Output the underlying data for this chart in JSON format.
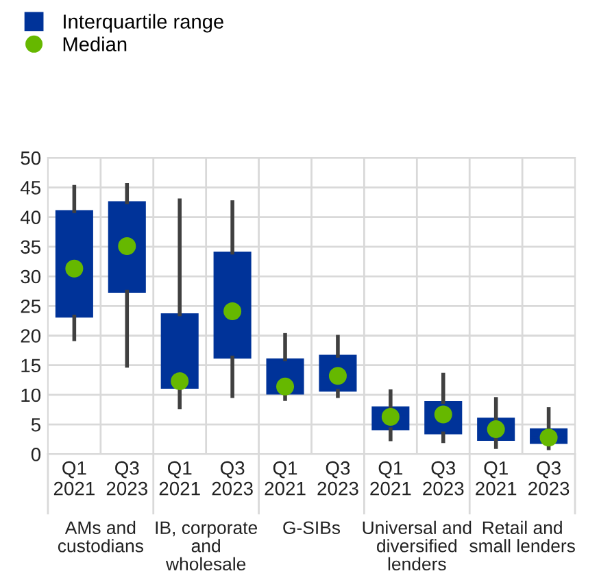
{
  "chart_data": {
    "type": "box",
    "categories": [
      "Q1\n2021",
      "Q3\n2023",
      "Q1\n2021",
      "Q3\n2023",
      "Q1\n2021",
      "Q3\n2023",
      "Q1\n2021",
      "Q3\n2023",
      "Q1\n2021",
      "Q3\n2023"
    ],
    "annotations": [
      "AMs and\ncustodians",
      "IB, corporate\nand\nwholesale",
      "G-SIBs",
      "Universal and\ndiversified\nlenders",
      "Retail and\nsmall lenders"
    ],
    "series": [
      {
        "name": "Interquartile range",
        "color": "#003399",
        "boxes": [
          {
            "low": 19.4,
            "q1": 23.2,
            "median": 31.3,
            "q3": 41.0,
            "high": 45.1
          },
          {
            "low": 14.9,
            "q1": 27.4,
            "median": 35.1,
            "q3": 42.5,
            "high": 45.4
          },
          {
            "low": 7.9,
            "q1": 11.2,
            "median": 12.3,
            "q3": 23.6,
            "high": 42.8
          },
          {
            "low": 9.8,
            "q1": 16.3,
            "median": 24.1,
            "q3": 34.0,
            "high": 42.5
          },
          {
            "low": 9.3,
            "q1": 10.2,
            "median": 11.4,
            "q3": 16.0,
            "high": 20.1
          },
          {
            "low": 9.8,
            "q1": 10.7,
            "median": 13.2,
            "q3": 16.6,
            "high": 19.8
          },
          {
            "low": 2.5,
            "q1": 4.2,
            "median": 6.3,
            "q3": 7.9,
            "high": 10.6
          },
          {
            "low": 2.2,
            "q1": 3.5,
            "median": 6.7,
            "q3": 8.8,
            "high": 13.4
          },
          {
            "low": 1.2,
            "q1": 2.4,
            "median": 4.2,
            "q3": 6.0,
            "high": 9.3
          },
          {
            "low": 1.0,
            "q1": 1.9,
            "median": 2.8,
            "q3": 4.2,
            "high": 7.6
          }
        ]
      },
      {
        "name": "Median",
        "type": "scatter",
        "color": "#66b800",
        "values": [
          31.3,
          35.1,
          12.3,
          24.1,
          11.4,
          13.2,
          6.3,
          6.7,
          4.2,
          2.8
        ]
      }
    ],
    "ylim": [
      0,
      50
    ],
    "yticks": [
      0,
      5,
      10,
      15,
      20,
      25,
      30,
      35,
      40,
      45,
      50
    ],
    "grid": true,
    "legend": "top left",
    "marker": "circle"
  }
}
